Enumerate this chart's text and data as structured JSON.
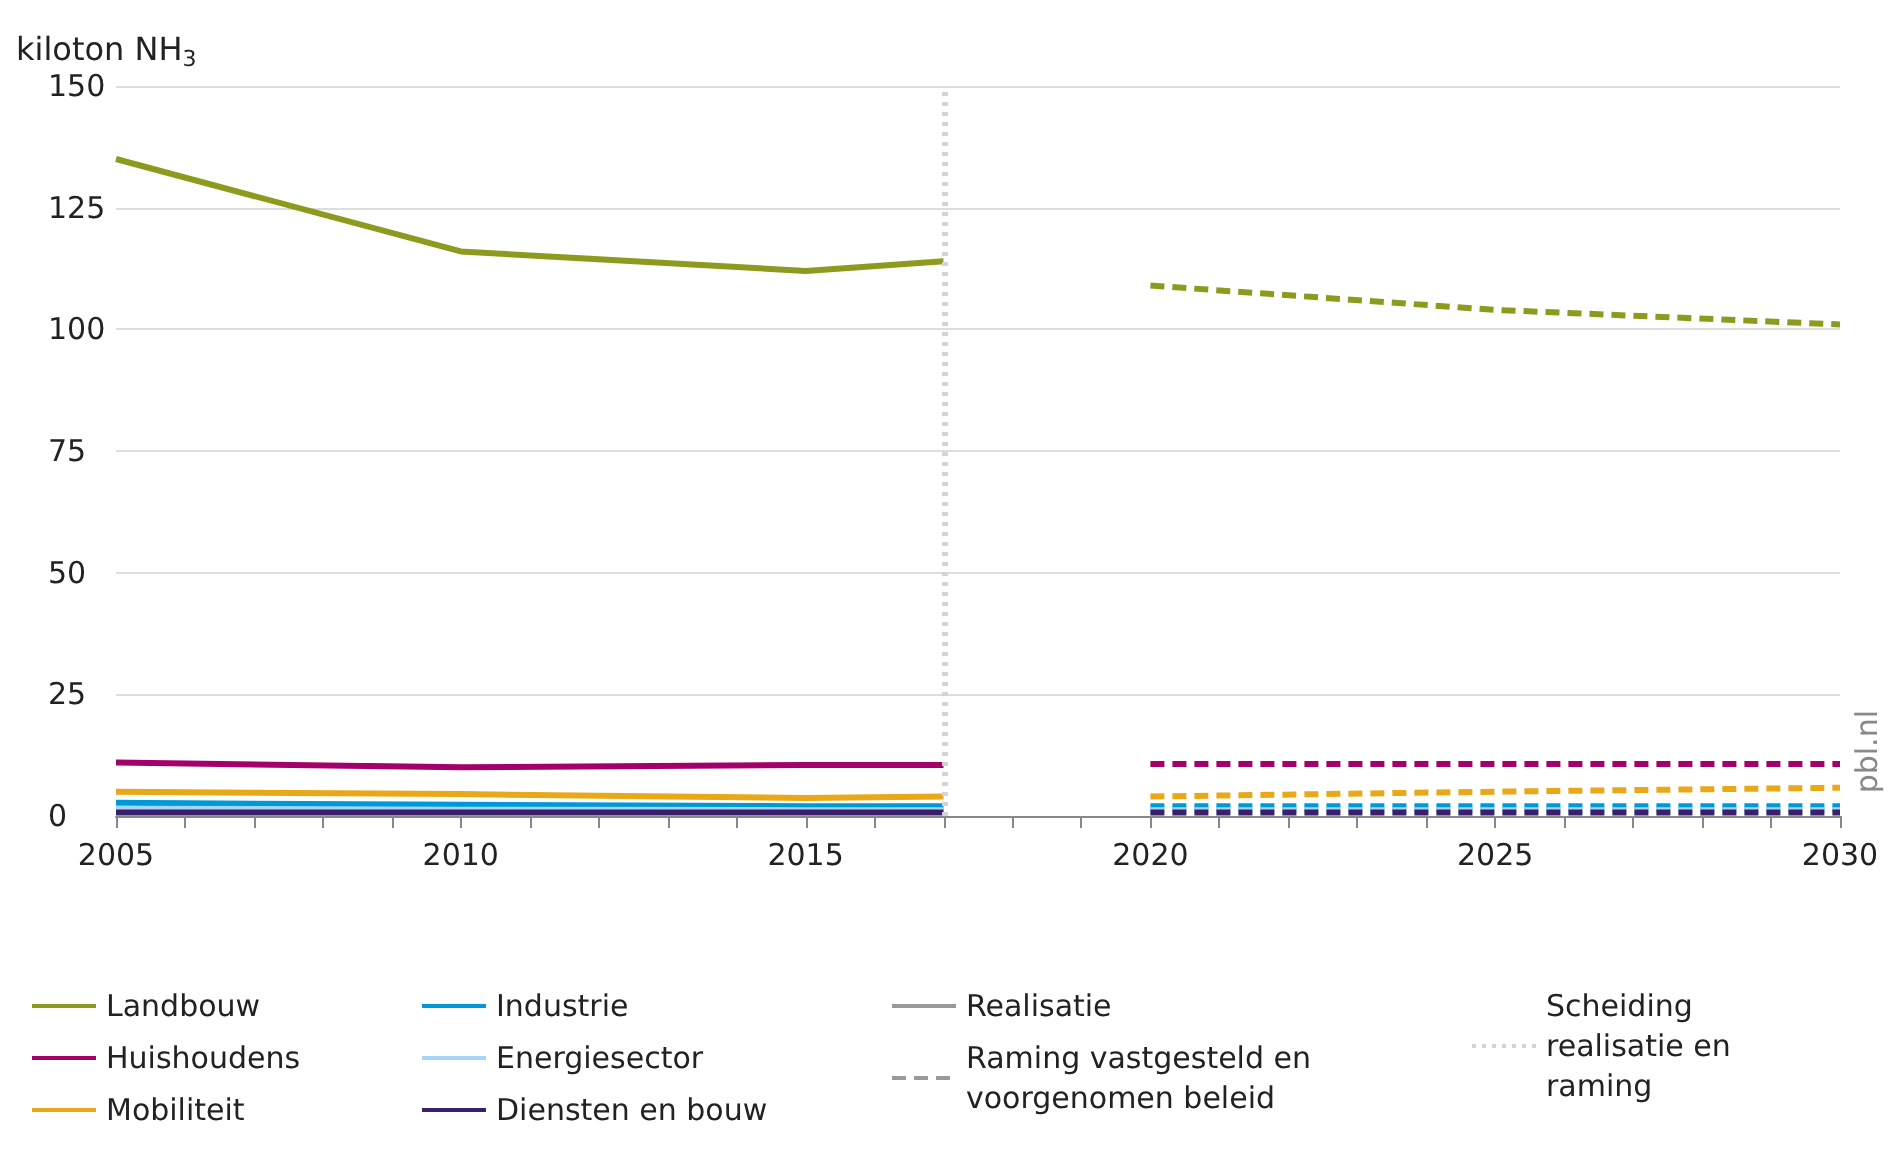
{
  "chart_data": {
    "type": "line",
    "ylabel": "kiloton NH$_{3}$",
    "xlim": [
      2005,
      2030
    ],
    "xticks": [
      2005,
      2010,
      2015,
      2020,
      2025,
      2030
    ],
    "ylim": [
      0,
      150
    ],
    "yticks": [
      0,
      25,
      50,
      75,
      100,
      125,
      150
    ],
    "grid": "y",
    "legend": "bottom",
    "marker": "none",
    "annotations": [
      "pbl.nl"
    ],
    "ref_lines": [
      {
        "axis": "x",
        "value": 2017,
        "label": "Scheiding realisatie en raming",
        "color": "#d4d4d4",
        "line_style": "dotted"
      }
    ],
    "series": [
      {
        "name": "Landbouw",
        "color": "#8c9a1e",
        "line_style": "solid",
        "x": [
          2005,
          2010,
          2015,
          2017
        ],
        "values": [
          135,
          116,
          112,
          114
        ]
      },
      {
        "name": "Huishoudens",
        "color": "#a3006b",
        "line_style": "solid",
        "x": [
          2005,
          2010,
          2015,
          2017
        ],
        "values": [
          11,
          10,
          10.5,
          10.5
        ]
      },
      {
        "name": "Mobiliteit",
        "color": "#e8a817",
        "line_style": "solid",
        "x": [
          2005,
          2010,
          2015,
          2017
        ],
        "values": [
          5,
          4.5,
          3.7,
          4
        ]
      },
      {
        "name": "Industrie",
        "color": "#0099d8",
        "line_style": "solid",
        "x": [
          2005,
          2010,
          2015,
          2017
        ],
        "values": [
          2.7,
          2.3,
          2,
          2
        ]
      },
      {
        "name": "Energiesector",
        "color": "#a5d6f7",
        "line_style": "solid",
        "x": [
          2005,
          2010,
          2015,
          2017
        ],
        "values": [
          1.5,
          1.3,
          1.2,
          1.2
        ]
      },
      {
        "name": "Diensten en bouw",
        "color": "#3b1f6b",
        "line_style": "solid",
        "x": [
          2005,
          2010,
          2015,
          2017
        ],
        "values": [
          0.7,
          0.7,
          0.7,
          0.7
        ]
      },
      {
        "color": "#8c9a1e",
        "line_style": "dashed",
        "x": [
          2020,
          2025,
          2030
        ],
        "values": [
          109,
          104,
          101
        ]
      },
      {
        "color": "#a3006b",
        "line_style": "dashed",
        "x": [
          2020,
          2025,
          2030
        ],
        "values": [
          10.7,
          10.7,
          10.7
        ]
      },
      {
        "color": "#e8a817",
        "line_style": "dashed",
        "x": [
          2020,
          2025,
          2030
        ],
        "values": [
          4,
          5,
          5.8
        ]
      },
      {
        "color": "#0099d8",
        "line_style": "dashed",
        "x": [
          2020,
          2025,
          2030
        ],
        "values": [
          2,
          2,
          2
        ]
      },
      {
        "color": "#a5d6f7",
        "line_style": "dashed",
        "x": [
          2020,
          2025,
          2030
        ],
        "values": [
          1.2,
          1.2,
          1.2
        ]
      },
      {
        "color": "#3b1f6b",
        "line_style": "dashed",
        "x": [
          2020,
          2025,
          2030
        ],
        "values": [
          0.7,
          0.7,
          0.7
        ]
      },
      {
        "name": "Realisatie",
        "color": "#9a9a9a",
        "line_style": "solid"
      },
      {
        "name": "Raming vastgesteld en voorgenomen beleid",
        "color": "#9a9a9a",
        "line_style": "dashed"
      }
    ]
  }
}
